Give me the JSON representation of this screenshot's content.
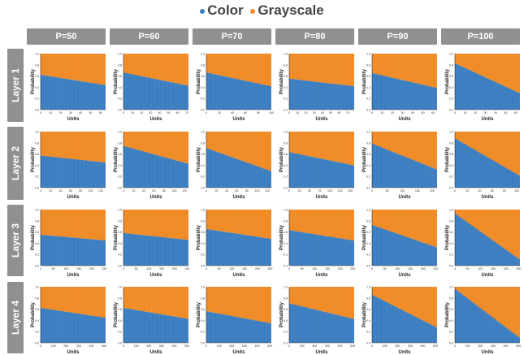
{
  "legend": [
    {
      "label": "Color",
      "color": "#3a7dc0"
    },
    {
      "label": "Grayscale",
      "color": "#f08a24"
    }
  ],
  "columns": [
    "P=50",
    "P=60",
    "P=70",
    "P=80",
    "P=90",
    "P=100"
  ],
  "rows": [
    "Layer 1",
    "Layer 2",
    "Layer 3",
    "Layer 4"
  ],
  "chart_data": {
    "type": "bar",
    "stacked": true,
    "xlabel": "Units",
    "ylabel": "Probability",
    "ylim": [
      0,
      1
    ],
    "yticks": [
      0.0,
      0.2,
      0.4,
      0.6,
      0.8,
      1.0
    ],
    "colors": {
      "Color": "#3a7dc0",
      "Grayscale": "#f08a24"
    },
    "panels": [
      {
        "row": "Layer 1",
        "col": "P=50",
        "xticks": [
          0,
          10,
          20,
          30,
          40,
          50,
          60
        ],
        "units": 65,
        "color_start": 0.62,
        "color_end": 0.44
      },
      {
        "row": "Layer 1",
        "col": "P=60",
        "xticks": [
          0,
          10,
          20,
          30,
          40,
          50,
          60,
          70
        ],
        "units": 72,
        "color_start": 0.66,
        "color_end": 0.43
      },
      {
        "row": "Layer 1",
        "col": "P=70",
        "xticks": [
          0,
          20,
          40,
          60,
          80,
          100
        ],
        "units": 100,
        "color_start": 0.66,
        "color_end": 0.42
      },
      {
        "row": "Layer 1",
        "col": "P=80",
        "xticks": [
          0,
          10,
          20,
          30,
          40,
          50,
          60,
          70
        ],
        "units": 78,
        "color_start": 0.55,
        "color_end": 0.42
      },
      {
        "row": "Layer 1",
        "col": "P=90",
        "xticks": [
          0,
          10,
          20,
          30,
          40,
          50,
          60
        ],
        "units": 64,
        "color_start": 0.65,
        "color_end": 0.39
      },
      {
        "row": "Layer 1",
        "col": "P=100",
        "xticks": [
          0,
          10,
          20,
          30,
          40,
          50,
          60
        ],
        "units": 64,
        "color_start": 0.82,
        "color_end": 0.3
      },
      {
        "row": "Layer 2",
        "col": "P=50",
        "xticks": [
          0,
          20,
          40,
          60,
          80,
          100,
          120
        ],
        "units": 130,
        "color_start": 0.57,
        "color_end": 0.45
      },
      {
        "row": "Layer 2",
        "col": "P=60",
        "xticks": [
          0,
          20,
          40,
          60,
          80,
          100,
          120
        ],
        "units": 128,
        "color_start": 0.74,
        "color_end": 0.43
      },
      {
        "row": "Layer 2",
        "col": "P=70",
        "xticks": [
          0,
          20,
          40,
          60,
          80,
          100,
          120
        ],
        "units": 128,
        "color_start": 0.7,
        "color_end": 0.3
      },
      {
        "row": "Layer 2",
        "col": "P=80",
        "xticks": [
          0,
          25,
          50,
          75,
          100,
          125,
          150
        ],
        "units": 160,
        "color_start": 0.63,
        "color_end": 0.4
      },
      {
        "row": "Layer 2",
        "col": "P=90",
        "xticks": [
          0,
          50,
          100,
          150,
          200
        ],
        "units": 215,
        "color_start": 0.78,
        "color_end": 0.33
      },
      {
        "row": "Layer 2",
        "col": "P=100",
        "xticks": [
          0,
          20,
          40,
          60,
          80,
          100
        ],
        "units": 105,
        "color_start": 0.87,
        "color_end": 0.22
      },
      {
        "row": "Layer 3",
        "col": "P=50",
        "xticks": [
          0,
          50,
          100,
          150,
          200,
          250
        ],
        "units": 255,
        "color_start": 0.55,
        "color_end": 0.45
      },
      {
        "row": "Layer 3",
        "col": "P=60",
        "xticks": [
          0,
          50,
          100,
          150,
          200,
          250
        ],
        "units": 255,
        "color_start": 0.58,
        "color_end": 0.46
      },
      {
        "row": "Layer 3",
        "col": "P=70",
        "xticks": [
          0,
          50,
          100,
          150,
          200,
          250
        ],
        "units": 255,
        "color_start": 0.65,
        "color_end": 0.48
      },
      {
        "row": "Layer 3",
        "col": "P=80",
        "xticks": [
          0,
          50,
          100,
          150,
          200,
          250
        ],
        "units": 255,
        "color_start": 0.63,
        "color_end": 0.45
      },
      {
        "row": "Layer 3",
        "col": "P=90",
        "xticks": [
          0,
          50,
          100,
          150,
          200,
          250
        ],
        "units": 255,
        "color_start": 0.72,
        "color_end": 0.33
      },
      {
        "row": "Layer 3",
        "col": "P=100",
        "xticks": [
          0,
          50,
          100,
          150,
          200,
          250
        ],
        "units": 255,
        "color_start": 0.92,
        "color_end": 0.12
      },
      {
        "row": "Layer 4",
        "col": "P=50",
        "xticks": [
          0,
          100,
          200,
          300,
          400,
          500
        ],
        "units": 512,
        "color_start": 0.62,
        "color_end": 0.45
      },
      {
        "row": "Layer 4",
        "col": "P=60",
        "xticks": [
          0,
          100,
          200,
          300,
          400,
          500
        ],
        "units": 512,
        "color_start": 0.62,
        "color_end": 0.43
      },
      {
        "row": "Layer 4",
        "col": "P=70",
        "xticks": [
          0,
          100,
          200,
          300,
          400,
          500
        ],
        "units": 512,
        "color_start": 0.56,
        "color_end": 0.35
      },
      {
        "row": "Layer 4",
        "col": "P=80",
        "xticks": [
          0,
          100,
          200,
          300,
          400,
          500
        ],
        "units": 512,
        "color_start": 0.7,
        "color_end": 0.43
      },
      {
        "row": "Layer 4",
        "col": "P=90",
        "xticks": [
          0,
          100,
          200,
          300,
          400,
          500
        ],
        "units": 512,
        "color_start": 0.85,
        "color_end": 0.28
      },
      {
        "row": "Layer 4",
        "col": "P=100",
        "xticks": [
          0,
          100,
          200,
          300,
          400,
          500
        ],
        "units": 512,
        "color_start": 0.95,
        "color_end": 0.1
      }
    ]
  }
}
